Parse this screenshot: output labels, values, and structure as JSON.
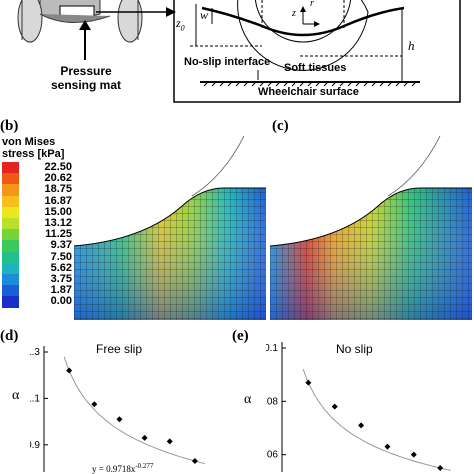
{
  "schematic": {
    "left_label_line1": "Pressure",
    "left_label_line2": "sensing mat",
    "symbol_z0": "z",
    "symbol_z0_sub": "0",
    "symbol_w": "w",
    "symbol_z": "z",
    "symbol_r": "r",
    "symbol_h": "h",
    "no_slip_label": "No-slip interface",
    "soft_tissues_label": "Soft tissues",
    "wheelchair_label": "Wheelchair surface"
  },
  "panel_b": {
    "label": "(b)",
    "legend_title_line1": "von Mises",
    "legend_title_line2": "stress [kPa]",
    "legend_entries": [
      {
        "value": "22.50",
        "color": "#e3251d"
      },
      {
        "value": "20.62",
        "color": "#ee5a16"
      },
      {
        "value": "18.75",
        "color": "#f49418"
      },
      {
        "value": "16.87",
        "color": "#f7bf1a"
      },
      {
        "value": "15.00",
        "color": "#ece71e"
      },
      {
        "value": "13.12",
        "color": "#b9e12a"
      },
      {
        "value": "11.25",
        "color": "#74d43a"
      },
      {
        "value": "9.37",
        "color": "#3cc95b"
      },
      {
        "value": "7.50",
        "color": "#22c08c"
      },
      {
        "value": "5.62",
        "color": "#1eb3bd"
      },
      {
        "value": "3.75",
        "color": "#1b8ed9"
      },
      {
        "value": "1.87",
        "color": "#1b5fd7"
      },
      {
        "value": "0.00",
        "color": "#1a2fc9"
      }
    ]
  },
  "panel_c": {
    "label": "(c)"
  },
  "panel_d": {
    "label": "(d)",
    "title": "Free slip",
    "ylabel": "α",
    "yticks": [
      "1.3",
      "1.1",
      "0.9"
    ],
    "equation": "y = 0.9718x",
    "equation_exp": "-0.277"
  },
  "panel_e": {
    "label": "(e)",
    "title": "No slip",
    "ylabel": "α",
    "yticks": [
      "0.1",
      "0.08",
      "0.06"
    ]
  },
  "chart_data": [
    {
      "type": "scatter",
      "title": "Free slip",
      "ylabel": "α",
      "ylim": [
        0.8,
        1.3
      ],
      "xlim": [
        0,
        6.6
      ],
      "x": [
        1,
        2,
        3,
        4,
        5,
        6
      ],
      "y": [
        1.22,
        1.075,
        1.01,
        0.93,
        0.915,
        0.83
      ],
      "fit": "y = 0.9718x^-0.277"
    },
    {
      "type": "scatter",
      "title": "No slip",
      "ylabel": "α",
      "ylim": [
        0.055,
        0.1
      ],
      "xlim": [
        0,
        6.6
      ],
      "x": [
        1,
        2,
        3,
        4,
        5,
        6
      ],
      "y": [
        0.087,
        0.078,
        0.071,
        0.063,
        0.06,
        0.055
      ]
    }
  ]
}
